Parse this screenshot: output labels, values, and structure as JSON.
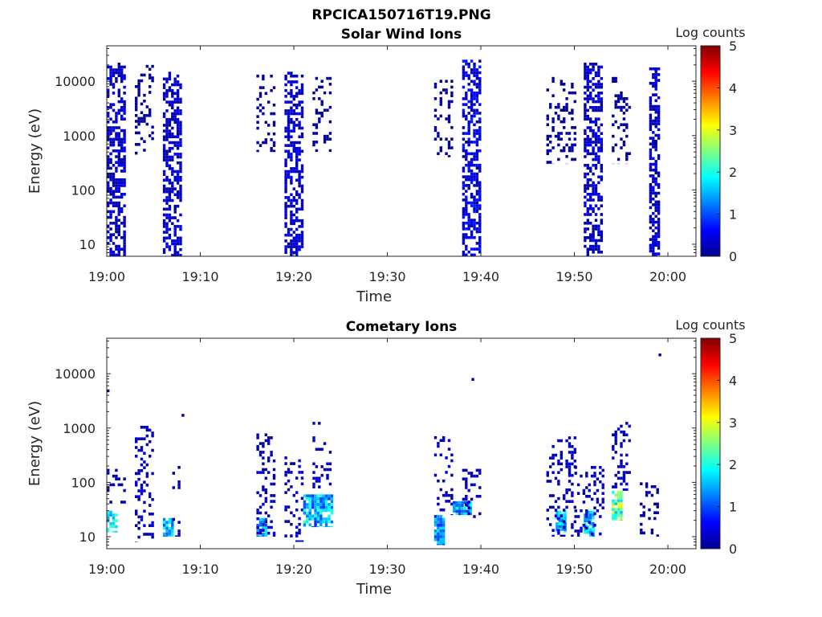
{
  "figure": {
    "title": "RPCICA150716T19.PNG",
    "colors": {
      "axis": "#262626",
      "background": "#ffffff"
    }
  },
  "chart_data": [
    {
      "type": "heatmap",
      "title": "Solar Wind Ions",
      "xlabel": "Time",
      "ylabel": "Energy (eV)",
      "y_scale": "log",
      "xlim": [
        "19:00",
        "20:03"
      ],
      "ylim": [
        6,
        45000
      ],
      "x_ticks": [
        "19:00",
        "19:10",
        "19:20",
        "19:30",
        "19:40",
        "19:50",
        "20:00"
      ],
      "y_ticks": [
        "10",
        "100",
        "1000",
        "10000"
      ],
      "colorbar": {
        "label": "Log counts",
        "range": [
          0,
          5
        ],
        "ticks": [
          "0",
          "1",
          "2",
          "3",
          "4",
          "5"
        ],
        "colormap": "jet"
      },
      "features": [
        {
          "kind": "column",
          "t_start": "19:00",
          "t_end": "19:02",
          "e_min": 6,
          "e_max": 22000,
          "intensity": [
            0.1,
            0.6
          ]
        },
        {
          "kind": "scatter",
          "t_start": "19:03",
          "t_end": "19:05",
          "e_min": 400,
          "e_max": 20000,
          "intensity": [
            0.1,
            0.2
          ]
        },
        {
          "kind": "column",
          "t_start": "19:06",
          "t_end": "19:08",
          "e_min": 6,
          "e_max": 15000,
          "intensity": [
            0.1,
            0.6
          ]
        },
        {
          "kind": "scatter",
          "t_start": "19:16",
          "t_end": "19:18",
          "e_min": 500,
          "e_max": 15000,
          "intensity": [
            0.1,
            0.2
          ]
        },
        {
          "kind": "column",
          "t_start": "19:19",
          "t_end": "19:21",
          "e_min": 6,
          "e_max": 15000,
          "intensity": [
            0.1,
            0.6
          ]
        },
        {
          "kind": "scatter",
          "t_start": "19:22",
          "t_end": "19:24",
          "e_min": 500,
          "e_max": 12000,
          "intensity": [
            0.1,
            0.2
          ]
        },
        {
          "kind": "scatter",
          "t_start": "19:35",
          "t_end": "19:37",
          "e_min": 400,
          "e_max": 12000,
          "intensity": [
            0.1,
            0.2
          ]
        },
        {
          "kind": "column",
          "t_start": "19:38",
          "t_end": "19:40",
          "e_min": 6,
          "e_max": 25000,
          "intensity": [
            0.1,
            0.8
          ]
        },
        {
          "kind": "scatter",
          "t_start": "19:47",
          "t_end": "19:50",
          "e_min": 300,
          "e_max": 12000,
          "intensity": [
            0.1,
            0.2
          ]
        },
        {
          "kind": "column",
          "t_start": "19:51",
          "t_end": "19:53",
          "e_min": 6,
          "e_max": 22000,
          "intensity": [
            0.1,
            0.6
          ]
        },
        {
          "kind": "scatter",
          "t_start": "19:54",
          "t_end": "19:56",
          "e_min": 300,
          "e_max": 12000,
          "intensity": [
            0.1,
            0.2
          ]
        },
        {
          "kind": "column",
          "t_start": "19:58",
          "t_end": "19:59",
          "e_min": 6,
          "e_max": 18000,
          "intensity": [
            0.1,
            0.6
          ]
        }
      ]
    },
    {
      "type": "heatmap",
      "title": "Cometary Ions",
      "xlabel": "Time",
      "ylabel": "Energy (eV)",
      "y_scale": "log",
      "xlim": [
        "19:00",
        "20:03"
      ],
      "ylim": [
        6,
        45000
      ],
      "x_ticks": [
        "19:00",
        "19:10",
        "19:20",
        "19:30",
        "19:40",
        "19:50",
        "20:00"
      ],
      "y_ticks": [
        "10",
        "100",
        "1000",
        "10000"
      ],
      "colorbar": {
        "label": "Log counts",
        "range": [
          0,
          5
        ],
        "ticks": [
          "0",
          "1",
          "2",
          "3",
          "4",
          "5"
        ],
        "colormap": "jet"
      },
      "features": [
        {
          "kind": "blob",
          "t_start": "19:00",
          "t_end": "19:01",
          "e_min": 12,
          "e_max": 30,
          "intensity": [
            1.2,
            2.2
          ]
        },
        {
          "kind": "scatter",
          "t_start": "19:00",
          "t_end": "19:02",
          "e_min": 30,
          "e_max": 200,
          "intensity": [
            0.1,
            0.4
          ]
        },
        {
          "kind": "scatter",
          "t_start": "19:03",
          "t_end": "19:05",
          "e_min": 8,
          "e_max": 1100,
          "intensity": [
            0.1,
            0.5
          ]
        },
        {
          "kind": "blob",
          "t_start": "19:06",
          "t_end": "19:07",
          "e_min": 10,
          "e_max": 22,
          "intensity": [
            1.0,
            2.0
          ]
        },
        {
          "kind": "scatter",
          "t_start": "19:07",
          "t_end": "19:08",
          "e_min": 10,
          "e_max": 200,
          "intensity": [
            0.1,
            0.4
          ]
        },
        {
          "kind": "blob",
          "t_start": "19:16",
          "t_end": "19:17",
          "e_min": 10,
          "e_max": 22,
          "intensity": [
            1.0,
            1.8
          ]
        },
        {
          "kind": "scatter",
          "t_start": "19:16",
          "t_end": "19:18",
          "e_min": 10,
          "e_max": 900,
          "intensity": [
            0.1,
            0.5
          ]
        },
        {
          "kind": "scatter",
          "t_start": "19:19",
          "t_end": "19:21",
          "e_min": 8,
          "e_max": 300,
          "intensity": [
            0.1,
            0.6
          ]
        },
        {
          "kind": "blob",
          "t_start": "19:21",
          "t_end": "19:24",
          "e_min": 15,
          "e_max": 60,
          "intensity": [
            0.8,
            2.2
          ]
        },
        {
          "kind": "scatter",
          "t_start": "19:22",
          "t_end": "19:24",
          "e_min": 60,
          "e_max": 1300,
          "intensity": [
            0.1,
            0.5
          ]
        },
        {
          "kind": "blob",
          "t_start": "19:35",
          "t_end": "19:36",
          "e_min": 7,
          "e_max": 25,
          "intensity": [
            0.8,
            1.8
          ]
        },
        {
          "kind": "scatter",
          "t_start": "19:35",
          "t_end": "19:37",
          "e_min": 25,
          "e_max": 800,
          "intensity": [
            0.1,
            0.5
          ]
        },
        {
          "kind": "blob",
          "t_start": "19:37",
          "t_end": "19:39",
          "e_min": 25,
          "e_max": 45,
          "intensity": [
            0.8,
            2.0
          ]
        },
        {
          "kind": "scatter",
          "t_start": "19:38",
          "t_end": "19:40",
          "e_min": 20,
          "e_max": 200,
          "intensity": [
            0.1,
            0.5
          ]
        },
        {
          "kind": "blob",
          "t_start": "19:48",
          "t_end": "19:49",
          "e_min": 12,
          "e_max": 30,
          "intensity": [
            1.0,
            2.0
          ]
        },
        {
          "kind": "scatter",
          "t_start": "19:47",
          "t_end": "19:50",
          "e_min": 10,
          "e_max": 700,
          "intensity": [
            0.1,
            0.5
          ]
        },
        {
          "kind": "blob",
          "t_start": "19:51",
          "t_end": "19:52",
          "e_min": 10,
          "e_max": 30,
          "intensity": [
            1.0,
            2.0
          ]
        },
        {
          "kind": "scatter",
          "t_start": "19:50",
          "t_end": "19:53",
          "e_min": 10,
          "e_max": 200,
          "intensity": [
            0.1,
            0.5
          ]
        },
        {
          "kind": "blob",
          "t_start": "19:54",
          "t_end": "19:55",
          "e_min": 20,
          "e_max": 70,
          "intensity": [
            1.5,
            3.2
          ]
        },
        {
          "kind": "scatter",
          "t_start": "19:54",
          "t_end": "19:56",
          "e_min": 70,
          "e_max": 1300,
          "intensity": [
            0.1,
            0.6
          ]
        },
        {
          "kind": "scatter",
          "t_start": "19:57",
          "t_end": "19:59",
          "e_min": 10,
          "e_max": 100,
          "intensity": [
            0.1,
            0.3
          ]
        },
        {
          "kind": "point",
          "t_start": "19:00",
          "t_end": "19:00",
          "e_min": 4800,
          "e_max": 4800,
          "intensity": [
            0.2,
            0.2
          ]
        },
        {
          "kind": "point",
          "t_start": "19:08",
          "t_end": "19:08",
          "e_min": 1700,
          "e_max": 1700,
          "intensity": [
            0.2,
            0.2
          ]
        },
        {
          "kind": "point",
          "t_start": "19:39",
          "t_end": "19:39",
          "e_min": 7800,
          "e_max": 7800,
          "intensity": [
            0.2,
            0.2
          ]
        },
        {
          "kind": "point",
          "t_start": "19:59",
          "t_end": "19:59",
          "e_min": 22000,
          "e_max": 22000,
          "intensity": [
            0.2,
            0.2
          ]
        }
      ]
    }
  ]
}
